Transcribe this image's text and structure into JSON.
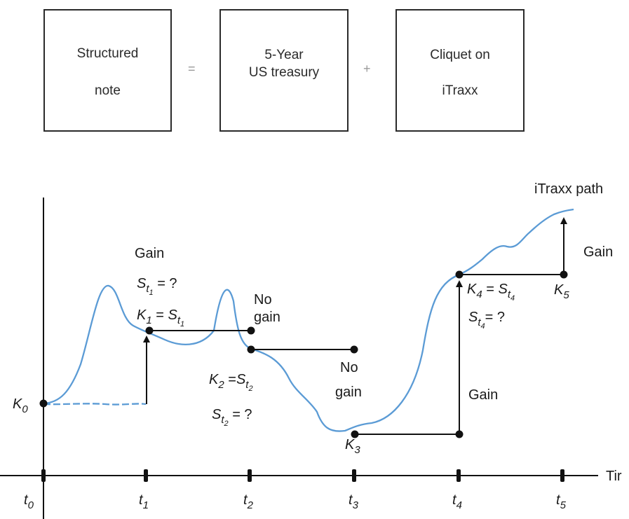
{
  "equation": {
    "box1": {
      "line1": "Structured",
      "line2": "note"
    },
    "equals": "=",
    "box2": {
      "line1": "5-Year",
      "line2": "US treasury"
    },
    "plus": "+",
    "box3": {
      "line1": "Cliquet on",
      "line2": "iTraxx"
    }
  },
  "diagram": {
    "path_label": "iTraxx path",
    "axis_label": "Tir",
    "colors": {
      "path": "#5b9bd5",
      "ink": "#111111"
    },
    "ticks": [
      {
        "s": "t",
        "sub": "0"
      },
      {
        "s": "t",
        "sub": "1"
      },
      {
        "s": "t",
        "sub": "2"
      },
      {
        "s": "t",
        "sub": "3"
      },
      {
        "s": "t",
        "sub": "4"
      },
      {
        "s": "t",
        "sub": "5"
      }
    ],
    "strikes": {
      "k0": {
        "s": "K",
        "sub": "0"
      },
      "k3": {
        "s": "K",
        "sub": "3"
      },
      "k5": {
        "s": "K",
        "sub": "5"
      }
    },
    "annotations": {
      "gain": "Gain",
      "no_gain_1_line1": "No",
      "no_gain_1_line2": "gain",
      "no_gain_2_line1": "No",
      "no_gain_2_line2": "gain",
      "gain_t4": "Gain",
      "gain_t5": "Gain"
    },
    "formulas": {
      "s1_q": {
        "s": "S",
        "t": "t",
        "n": "1",
        "tail": " = ?"
      },
      "k1": {
        "k": "K",
        "kn": "1",
        "eq": " = ",
        "s": "S",
        "t": "t",
        "n": "1"
      },
      "k2": {
        "k": "K",
        "kn": "2",
        "eq": " =",
        "s": "S",
        "t": "t",
        "n": "2"
      },
      "s2_q": {
        "s": "S",
        "t": "t",
        "n": "2",
        "tail": " = ?"
      },
      "k4": {
        "k": "K",
        "kn": "4",
        "eq": " = ",
        "s": "S",
        "t": "t",
        "n": "4"
      },
      "s4_q": {
        "s": "S",
        "t": "t",
        "n": "4",
        "tail": "= ?"
      }
    }
  }
}
